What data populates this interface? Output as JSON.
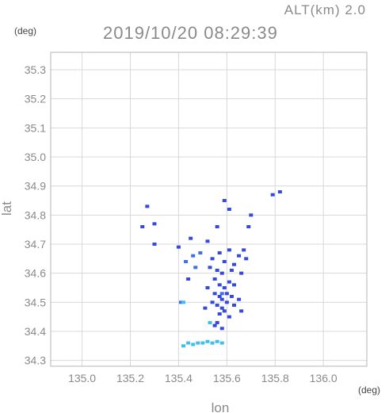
{
  "header": {
    "altitude_label": "ALT(km) 2.0",
    "timestamp": "2019/10/20 08:29:39"
  },
  "chart_data": {
    "type": "scatter",
    "title": "2019/10/20 08:29:39",
    "subtitle": "ALT(km) 2.0",
    "xlabel": "lon",
    "ylabel": "lat",
    "x_unit": "(deg)",
    "y_unit": "(deg)",
    "xlim": [
      134.87,
      136.18
    ],
    "ylim": [
      34.28,
      35.36
    ],
    "x_ticks": [
      "135.0",
      "135.2",
      "135.4",
      "135.6",
      "135.8",
      "136.0"
    ],
    "y_ticks": [
      "34.3",
      "34.4",
      "34.5",
      "34.6",
      "34.7",
      "34.8",
      "34.9",
      "35.0",
      "35.1",
      "35.2",
      "35.3"
    ],
    "grid": true,
    "colors": {
      "strong": "#3548e0",
      "medium": "#3f6ef0",
      "weak": "#3cc0f0"
    },
    "series": [
      {
        "level": "strong",
        "points": [
          [
            135.27,
            34.83
          ],
          [
            135.25,
            34.76
          ],
          [
            135.3,
            34.77
          ],
          [
            135.3,
            34.7
          ],
          [
            135.4,
            34.69
          ],
          [
            135.45,
            34.72
          ],
          [
            135.52,
            34.71
          ],
          [
            135.56,
            34.76
          ],
          [
            135.59,
            34.85
          ],
          [
            135.61,
            34.82
          ],
          [
            135.7,
            34.8
          ],
          [
            135.69,
            34.76
          ],
          [
            135.79,
            34.87
          ],
          [
            135.82,
            34.88
          ],
          [
            135.54,
            34.65
          ],
          [
            135.57,
            34.67
          ],
          [
            135.59,
            34.64
          ],
          [
            135.61,
            34.68
          ],
          [
            135.63,
            34.63
          ],
          [
            135.65,
            34.66
          ],
          [
            135.67,
            34.68
          ],
          [
            135.68,
            34.65
          ],
          [
            135.53,
            34.62
          ],
          [
            135.56,
            34.61
          ],
          [
            135.58,
            34.6
          ],
          [
            135.62,
            34.61
          ],
          [
            135.66,
            34.6
          ],
          [
            135.55,
            34.58
          ],
          [
            135.57,
            34.56
          ],
          [
            135.59,
            34.55
          ],
          [
            135.61,
            34.57
          ],
          [
            135.63,
            34.56
          ],
          [
            135.55,
            34.53
          ],
          [
            135.57,
            34.52
          ],
          [
            135.58,
            34.51
          ],
          [
            135.6,
            34.53
          ],
          [
            135.62,
            34.52
          ],
          [
            135.54,
            34.5
          ],
          [
            135.56,
            34.49
          ],
          [
            135.58,
            34.48
          ],
          [
            135.6,
            34.5
          ],
          [
            135.63,
            34.49
          ],
          [
            135.65,
            34.51
          ],
          [
            135.57,
            34.46
          ],
          [
            135.59,
            34.47
          ],
          [
            135.61,
            34.45
          ],
          [
            135.56,
            34.43
          ],
          [
            135.55,
            34.42
          ],
          [
            135.58,
            34.41
          ],
          [
            135.52,
            34.55
          ],
          [
            135.51,
            34.48
          ],
          [
            135.66,
            34.47
          ],
          [
            135.44,
            34.58
          ]
        ]
      },
      {
        "level": "medium",
        "points": [
          [
            135.43,
            34.64
          ],
          [
            135.46,
            34.66
          ],
          [
            135.47,
            34.62
          ],
          [
            135.58,
            34.53
          ],
          [
            135.41,
            34.5
          ],
          [
            135.49,
            34.67
          ]
        ]
      },
      {
        "level": "weak",
        "points": [
          [
            135.42,
            34.5
          ],
          [
            135.42,
            34.35
          ],
          [
            135.44,
            34.36
          ],
          [
            135.46,
            34.355
          ],
          [
            135.48,
            34.36
          ],
          [
            135.5,
            34.36
          ],
          [
            135.52,
            34.365
          ],
          [
            135.54,
            34.36
          ],
          [
            135.56,
            34.365
          ],
          [
            135.58,
            34.36
          ],
          [
            135.53,
            34.43
          ]
        ]
      }
    ]
  }
}
